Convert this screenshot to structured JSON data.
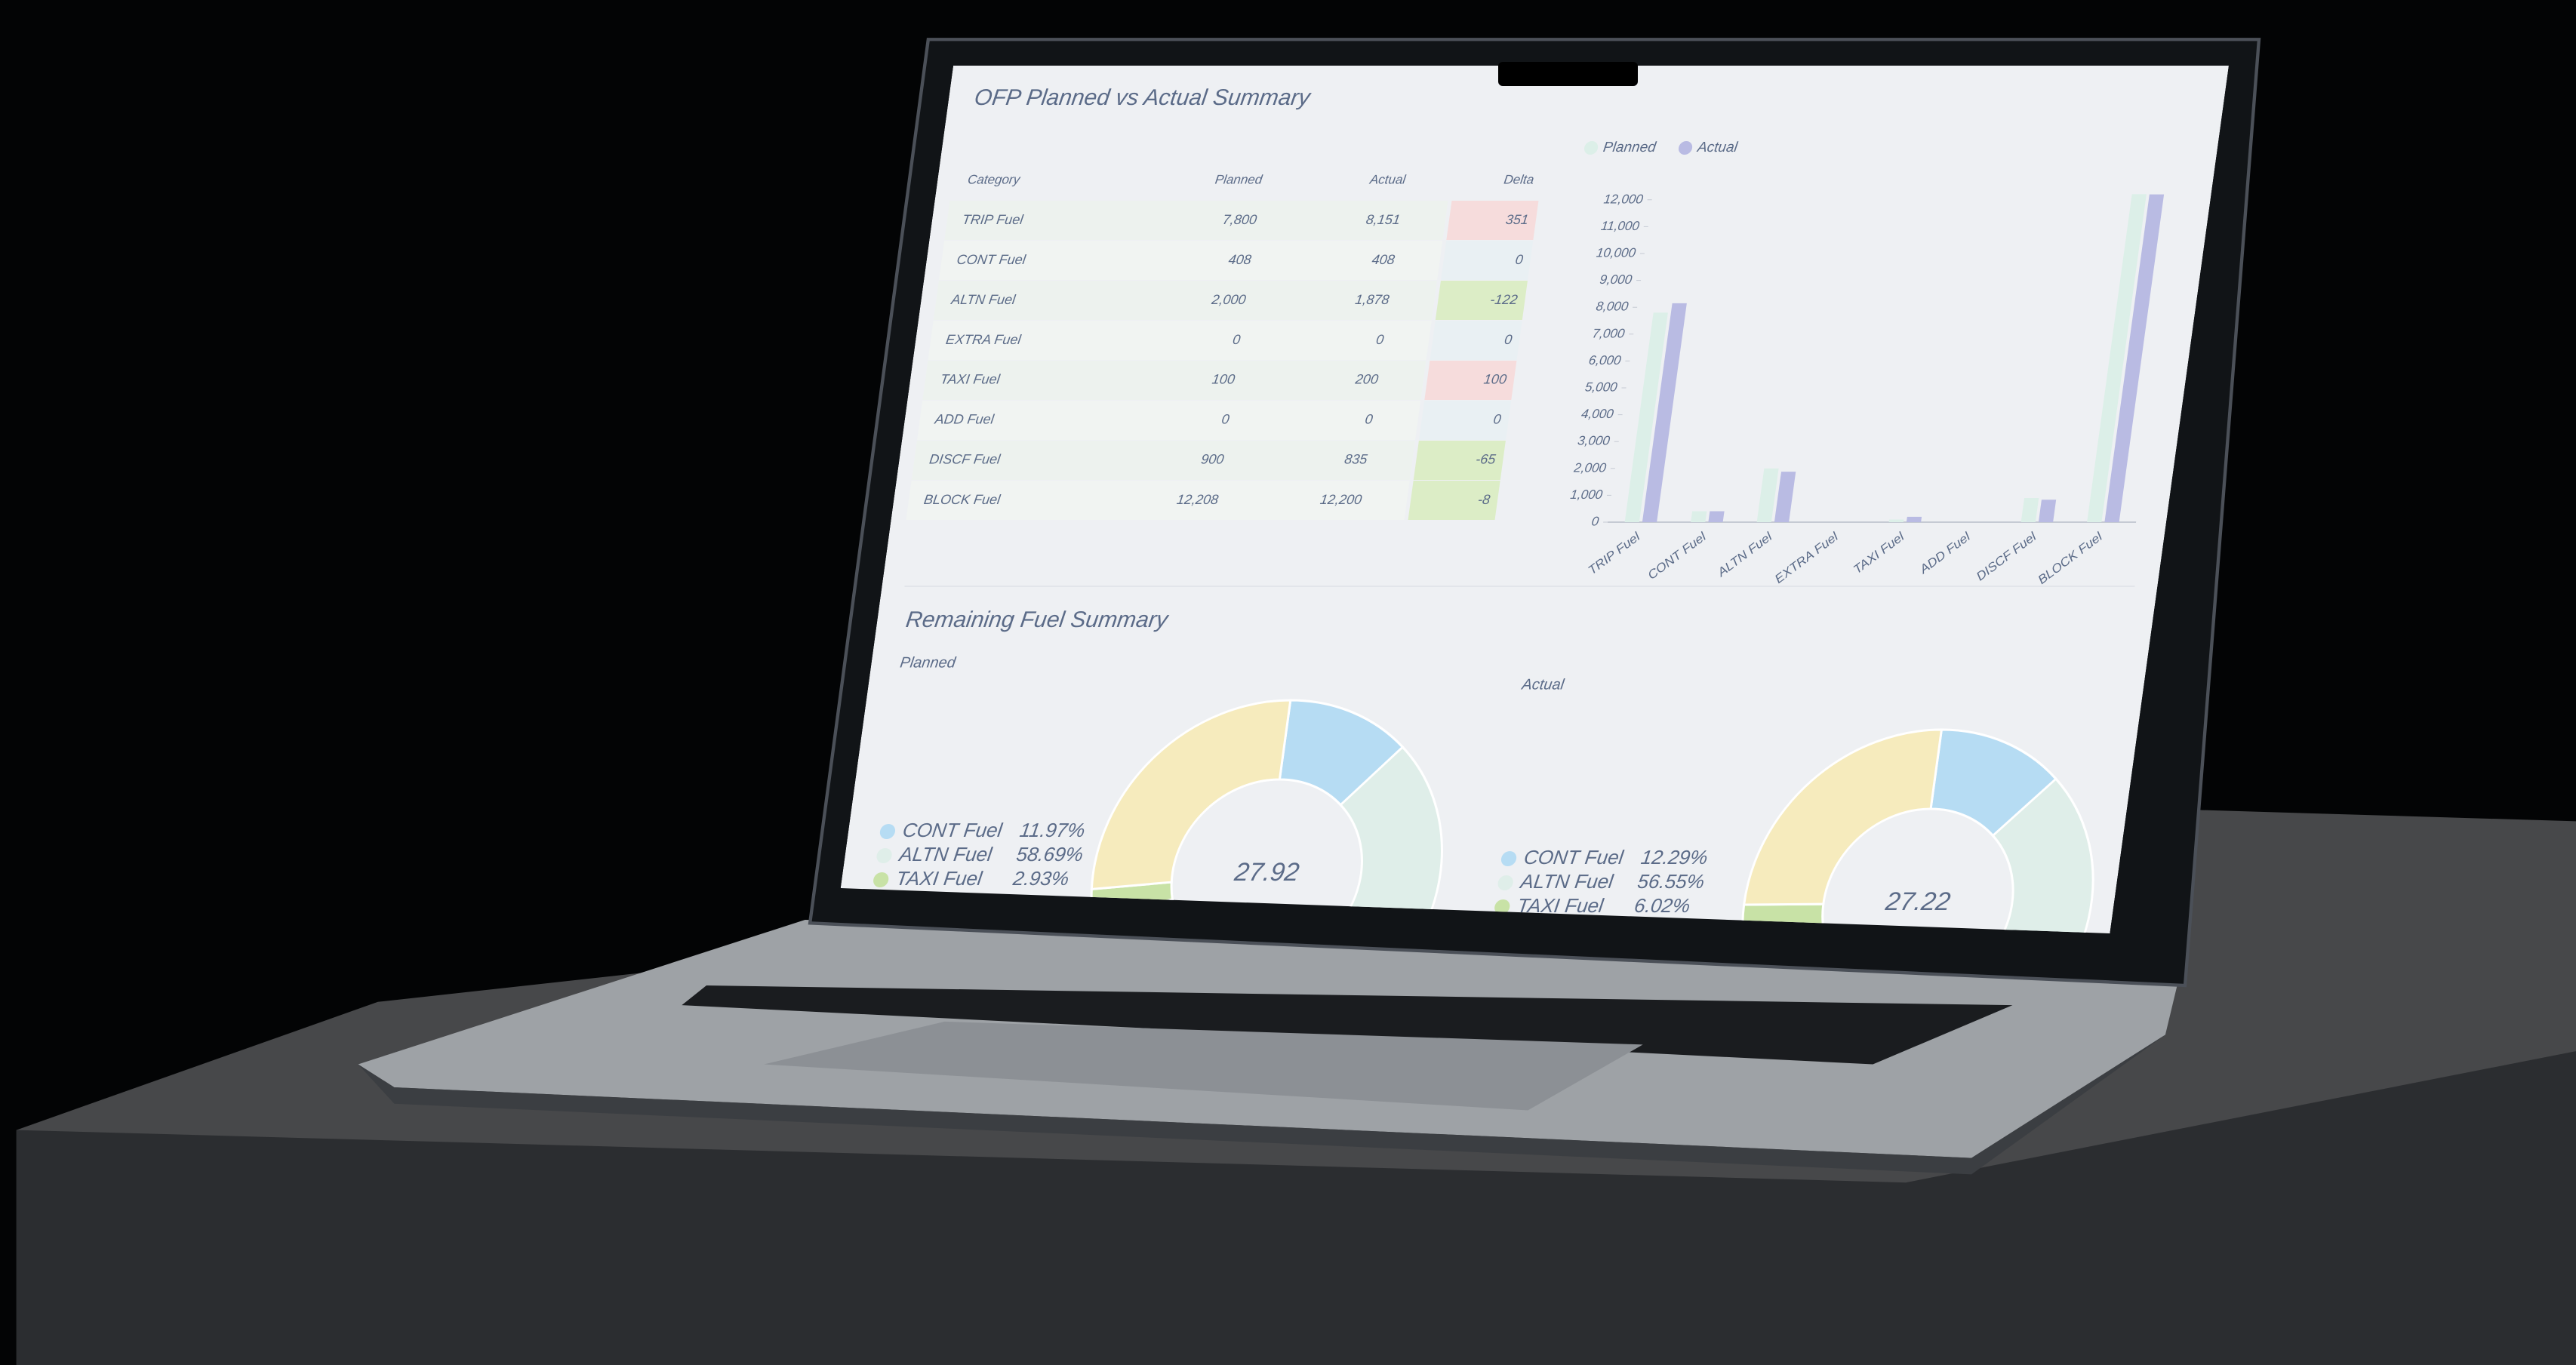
{
  "screen": {
    "title": "OFP Planned vs Actual Summary",
    "table": {
      "headers": [
        "Category",
        "Planned",
        "Actual",
        "Delta"
      ],
      "rows": [
        [
          "TRIP Fuel",
          "7,800",
          "8,151",
          "351"
        ],
        [
          "CONT Fuel",
          "408",
          "408",
          "0"
        ],
        [
          "ALTN Fuel",
          "2,000",
          "1,878",
          "-122"
        ],
        [
          "EXTRA Fuel",
          "0",
          "0",
          "0"
        ],
        [
          "TAXI Fuel",
          "100",
          "200",
          "100"
        ],
        [
          "ADD Fuel",
          "0",
          "0",
          "0"
        ],
        [
          "DISCF Fuel",
          "900",
          "835",
          "-65"
        ],
        [
          "BLOCK Fuel",
          "12,208",
          "12,200",
          "-8"
        ]
      ]
    },
    "section_title": "Remaining Fuel Summary"
  },
  "chart_data": [
    {
      "type": "bar",
      "categories": [
        "TRIP Fuel",
        "CONT Fuel",
        "ALTN Fuel",
        "EXTRA Fuel",
        "TAXI Fuel",
        "ADD Fuel",
        "DISCF Fuel",
        "BLOCK Fuel"
      ],
      "series": [
        {
          "name": "Planned",
          "color": "#dcefe8",
          "values": [
            7800,
            408,
            2000,
            0,
            100,
            0,
            900,
            12208
          ]
        },
        {
          "name": "Actual",
          "color": "#b9bbe3",
          "values": [
            8151,
            408,
            1878,
            0,
            200,
            0,
            835,
            12200
          ]
        }
      ],
      "ylim": [
        0,
        12500
      ],
      "yticks": [
        0,
        {
          "value": 1000,
          "label": "1,000"
        },
        {
          "value": 2000,
          "label": "2,000"
        },
        {
          "value": 3000,
          "label": "3,000"
        },
        {
          "value": 4000,
          "label": "4,000"
        },
        {
          "value": 5000,
          "label": "5,000"
        },
        {
          "value": 6000,
          "label": "6,000"
        },
        {
          "value": 7000,
          "label": "7,000"
        },
        {
          "value": 8000,
          "label": "8,000"
        },
        {
          "value": 9000,
          "label": "9,000"
        },
        {
          "value": 10000,
          "label": "10,000"
        },
        {
          "value": 11000,
          "label": "11,000"
        },
        {
          "value": 12000,
          "label": "12,000"
        }
      ],
      "legend": "top-left"
    },
    {
      "type": "pie",
      "title": "Planned",
      "categories": [
        "CONT Fuel",
        "ALTN Fuel",
        "TAXI Fuel"
      ],
      "values": [
        11.97,
        58.69,
        2.93
      ],
      "value_labels": [
        "11.97%",
        "58.69%",
        "2.93%"
      ],
      "colors": [
        "#b6dcf3",
        "#dfeee9",
        "#c8e2a6"
      ],
      "center_label": "27.92"
    },
    {
      "type": "pie",
      "title": "Actual",
      "categories": [
        "CONT Fuel",
        "ALTN Fuel",
        "TAXI Fuel"
      ],
      "values": [
        12.29,
        56.55,
        6.02
      ],
      "value_labels": [
        "12.29%",
        "56.55%",
        "6.02%"
      ],
      "colors": [
        "#b6dcf3",
        "#dfeee9",
        "#c8e2a6"
      ],
      "center_label": "27.22"
    }
  ]
}
